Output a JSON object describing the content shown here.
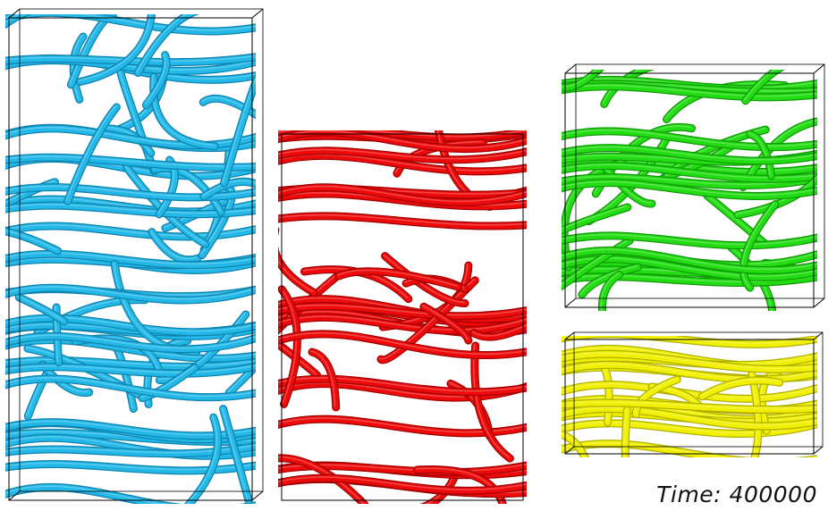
{
  "time_label": "Time: 400000",
  "panels": [
    {
      "name": "cyan-network-panel",
      "color": "#22b8e8",
      "shade": "#0f82ad",
      "strokes": 70,
      "seed": 11
    },
    {
      "name": "red-network-panel",
      "color": "#ee0a0a",
      "shade": "#a10000",
      "strokes": 44,
      "seed": 29
    },
    {
      "name": "green-network-panel",
      "color": "#22dd12",
      "shade": "#119a08",
      "strokes": 38,
      "seed": 47
    },
    {
      "name": "yellow-network-panel",
      "color": "#f0f000",
      "shade": "#b0b000",
      "strokes": 22,
      "seed": 83
    }
  ]
}
